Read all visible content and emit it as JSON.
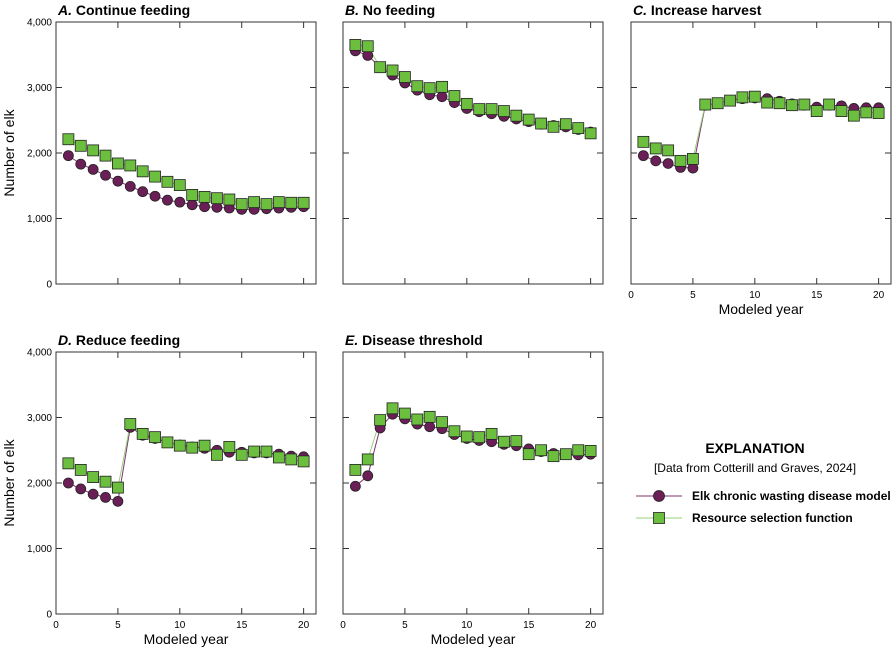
{
  "colors": {
    "ecwd_fill": "#6b1f57",
    "ecwd_line": "#7a3570",
    "rsf_fill": "#6cbf3e",
    "rsf_line": "#9bcf7a",
    "marker_stroke": "#222222"
  },
  "chart_data": [
    {
      "type": "line",
      "letter": "A.",
      "title": "Continue feeding",
      "xlabel": "",
      "ylabel": "Number of elk",
      "xlim": [
        0,
        21
      ],
      "ylim": [
        0,
        4000
      ],
      "xticks": [
        0,
        5,
        10,
        15,
        20
      ],
      "show_xtick_labels": false,
      "yticks": [
        0,
        1000,
        2000,
        3000,
        4000
      ],
      "ytick_labels": [
        "0",
        "1,000",
        "2,000",
        "3,000",
        "4,000"
      ],
      "show_ytick_labels": true,
      "x": [
        1,
        2,
        3,
        4,
        5,
        6,
        7,
        8,
        9,
        10,
        11,
        12,
        13,
        14,
        15,
        16,
        17,
        18,
        19,
        20
      ],
      "series": [
        {
          "name": "Elk chronic wasting disease model",
          "values": [
            1960,
            1830,
            1750,
            1660,
            1570,
            1490,
            1410,
            1340,
            1280,
            1250,
            1210,
            1180,
            1170,
            1160,
            1140,
            1140,
            1150,
            1160,
            1170,
            1180
          ]
        },
        {
          "name": "Resource selection function",
          "values": [
            2210,
            2110,
            2040,
            1960,
            1840,
            1810,
            1720,
            1640,
            1560,
            1510,
            1360,
            1330,
            1310,
            1290,
            1220,
            1250,
            1220,
            1250,
            1240,
            1240
          ]
        }
      ]
    },
    {
      "type": "line",
      "letter": "B.",
      "title": "No feeding",
      "xlabel": "",
      "ylabel": "",
      "xlim": [
        0,
        21
      ],
      "ylim": [
        0,
        4000
      ],
      "xticks": [
        0,
        5,
        10,
        15,
        20
      ],
      "show_xtick_labels": false,
      "yticks": [
        0,
        1000,
        2000,
        3000,
        4000
      ],
      "ytick_labels": [
        "0",
        "1,000",
        "2,000",
        "3,000",
        "4,000"
      ],
      "show_ytick_labels": false,
      "x": [
        1,
        2,
        3,
        4,
        5,
        6,
        7,
        8,
        9,
        10,
        11,
        12,
        13,
        14,
        15,
        16,
        17,
        18,
        19,
        20
      ],
      "series": [
        {
          "name": "Elk chronic wasting disease model",
          "values": [
            3560,
            3490,
            3310,
            3190,
            3070,
            2960,
            2890,
            2860,
            2770,
            2680,
            2630,
            2600,
            2560,
            2520,
            2480,
            2440,
            2420,
            2400,
            2360,
            2320
          ]
        },
        {
          "name": "Resource selection function",
          "values": [
            3650,
            3630,
            3310,
            3260,
            3160,
            3020,
            2990,
            3010,
            2870,
            2750,
            2670,
            2670,
            2640,
            2570,
            2510,
            2450,
            2400,
            2440,
            2380,
            2300
          ]
        }
      ]
    },
    {
      "type": "line",
      "letter": "C.",
      "title": "Increase harvest",
      "xlabel": "Modeled year",
      "ylabel": "",
      "xlim": [
        0,
        21
      ],
      "ylim": [
        0,
        4000
      ],
      "xticks": [
        0,
        5,
        10,
        15,
        20
      ],
      "show_xtick_labels": true,
      "yticks": [
        0,
        1000,
        2000,
        3000,
        4000
      ],
      "ytick_labels": [
        "0",
        "1,000",
        "2,000",
        "3,000",
        "4,000"
      ],
      "show_ytick_labels": false,
      "x": [
        1,
        2,
        3,
        4,
        5,
        6,
        7,
        8,
        9,
        10,
        11,
        12,
        13,
        14,
        15,
        16,
        17,
        18,
        19,
        20
      ],
      "series": [
        {
          "name": "Elk chronic wasting disease model",
          "values": [
            1960,
            1880,
            1840,
            1780,
            1770,
            2730,
            2760,
            2800,
            2830,
            2840,
            2830,
            2790,
            2750,
            2730,
            2700,
            2730,
            2720,
            2680,
            2690,
            2690
          ]
        },
        {
          "name": "Resource selection function",
          "values": [
            2170,
            2070,
            2040,
            1880,
            1910,
            2740,
            2760,
            2800,
            2850,
            2860,
            2770,
            2760,
            2730,
            2740,
            2640,
            2740,
            2640,
            2570,
            2620,
            2610
          ]
        }
      ]
    },
    {
      "type": "line",
      "letter": "D.",
      "title": "Reduce feeding",
      "xlabel": "Modeled year",
      "ylabel": "Number of elk",
      "xlim": [
        0,
        21
      ],
      "ylim": [
        0,
        4000
      ],
      "xticks": [
        0,
        5,
        10,
        15,
        20
      ],
      "show_xtick_labels": true,
      "yticks": [
        0,
        1000,
        2000,
        3000,
        4000
      ],
      "ytick_labels": [
        "0",
        "1,000",
        "2,000",
        "3,000",
        "4,000"
      ],
      "show_ytick_labels": true,
      "x": [
        1,
        2,
        3,
        4,
        5,
        6,
        7,
        8,
        9,
        10,
        11,
        12,
        13,
        14,
        15,
        16,
        17,
        18,
        19,
        20
      ],
      "series": [
        {
          "name": "Elk chronic wasting disease model",
          "values": [
            2000,
            1910,
            1830,
            1780,
            1720,
            2850,
            2730,
            2680,
            2620,
            2580,
            2550,
            2530,
            2500,
            2470,
            2470,
            2460,
            2460,
            2440,
            2410,
            2400
          ]
        },
        {
          "name": "Resource selection function",
          "values": [
            2300,
            2200,
            2090,
            2020,
            1930,
            2900,
            2750,
            2700,
            2620,
            2570,
            2540,
            2570,
            2430,
            2550,
            2430,
            2480,
            2480,
            2390,
            2360,
            2330
          ]
        }
      ]
    },
    {
      "type": "line",
      "letter": "E.",
      "title": "Disease threshold",
      "xlabel": "Modeled year",
      "ylabel": "",
      "xlim": [
        0,
        21
      ],
      "ylim": [
        0,
        4000
      ],
      "xticks": [
        0,
        5,
        10,
        15,
        20
      ],
      "show_xtick_labels": true,
      "yticks": [
        0,
        1000,
        2000,
        3000,
        4000
      ],
      "ytick_labels": [
        "0",
        "1,000",
        "2,000",
        "3,000",
        "4,000"
      ],
      "show_ytick_labels": false,
      "x": [
        1,
        2,
        3,
        4,
        5,
        6,
        7,
        8,
        9,
        10,
        11,
        12,
        13,
        14,
        15,
        16,
        17,
        18,
        19,
        20
      ],
      "series": [
        {
          "name": "Elk chronic wasting disease model",
          "values": [
            1950,
            2110,
            2840,
            3050,
            2980,
            2900,
            2860,
            2830,
            2740,
            2680,
            2650,
            2630,
            2590,
            2570,
            2520,
            2480,
            2450,
            2440,
            2430,
            2440
          ]
        },
        {
          "name": "Resource selection function",
          "values": [
            2200,
            2360,
            2960,
            3140,
            3060,
            2970,
            3010,
            2930,
            2790,
            2710,
            2700,
            2750,
            2630,
            2640,
            2440,
            2500,
            2410,
            2440,
            2500,
            2490
          ]
        }
      ]
    }
  ],
  "explanation": {
    "title": "EXPLANATION",
    "source": "[Data from Cotterill and Graves, 2024]",
    "items": [
      {
        "label": "Elk chronic wasting disease model",
        "marker": "circle"
      },
      {
        "label": "Resource selection function",
        "marker": "square"
      }
    ]
  }
}
